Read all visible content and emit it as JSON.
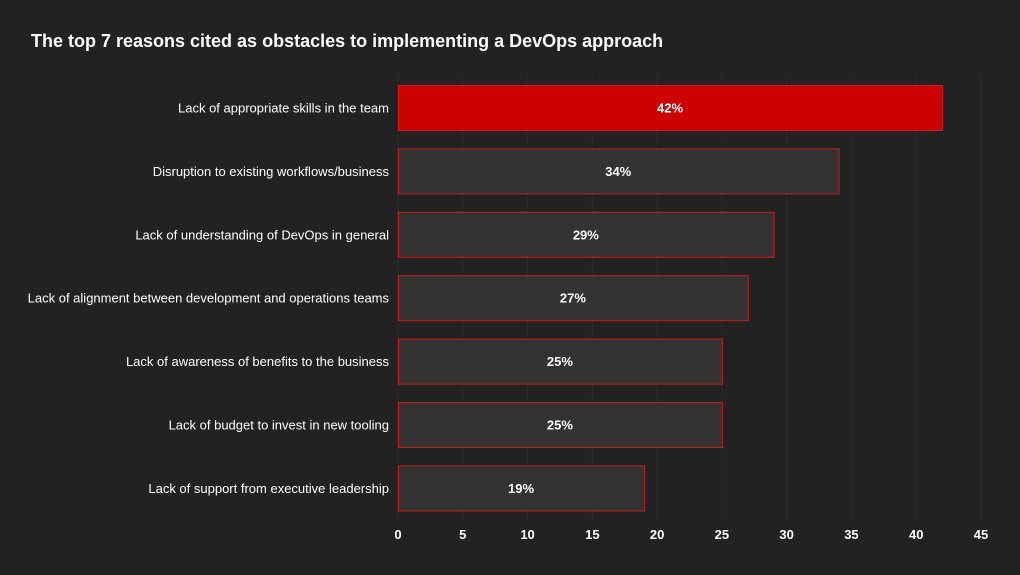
{
  "chart_data": {
    "type": "bar",
    "orientation": "horizontal",
    "title": "The top 7 reasons cited as obstacles to implementing a DevOps approach",
    "xlabel": "",
    "ylabel": "",
    "categories": [
      "Lack of appropriate skills in the team",
      "Disruption to existing workflows/business",
      "Lack of understanding of DevOps in general",
      "Lack of alignment between development and operations teams",
      "Lack of awareness of benefits to the business",
      "Lack of budget to invest in new tooling",
      "Lack of support from executive leadership"
    ],
    "values": [
      42,
      34,
      29,
      27,
      25,
      25,
      19
    ],
    "data_labels": [
      "42%",
      "34%",
      "29%",
      "27%",
      "25%",
      "25%",
      "19%"
    ],
    "xlim": [
      0,
      45
    ],
    "xticks": [
      "0",
      "5",
      "10",
      "15",
      "20",
      "25",
      "30",
      "35",
      "40",
      "45"
    ],
    "grid": true,
    "colors": {
      "background": "#222222",
      "highlight_bar": "#cc0000",
      "bar_fill": "#333333",
      "bar_border": "#c81e1e",
      "grid": "#2c2c2c",
      "text": "#ffffff"
    }
  }
}
